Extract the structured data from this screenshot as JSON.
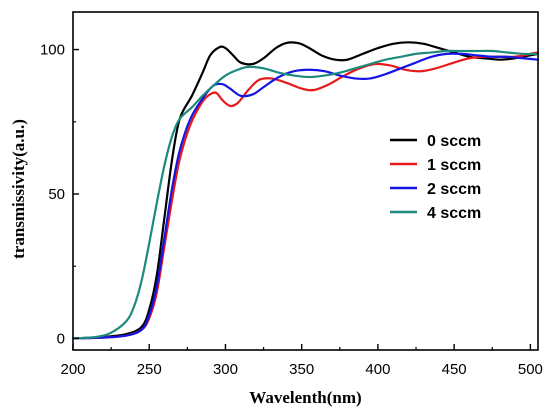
{
  "chart_data": {
    "type": "line",
    "title": "",
    "xlabel": "Wavelenth(nm)",
    "ylabel": "transmissivity(a.u.)",
    "xlim": [
      200,
      505
    ],
    "ylim": [
      -4,
      113
    ],
    "x_ticks": [
      200,
      250,
      300,
      350,
      400,
      450,
      500
    ],
    "y_ticks": [
      0,
      50,
      100
    ],
    "x_tick_labels": [
      "200",
      "250",
      "300",
      "350",
      "400",
      "450",
      "500"
    ],
    "y_tick_labels": [
      "0",
      "50",
      "100"
    ],
    "grid": false,
    "legend_position": "right",
    "series": [
      {
        "name": "0 sccm",
        "color": "#000000",
        "points": [
          [
            200,
            0
          ],
          [
            220,
            0.5
          ],
          [
            235,
            1.5
          ],
          [
            245,
            4
          ],
          [
            250,
            10
          ],
          [
            255,
            22
          ],
          [
            260,
            42
          ],
          [
            265,
            62
          ],
          [
            270,
            76
          ],
          [
            278,
            84
          ],
          [
            285,
            92
          ],
          [
            290,
            98
          ],
          [
            296,
            100.8
          ],
          [
            300,
            100.5
          ],
          [
            305,
            98
          ],
          [
            310,
            95.5
          ],
          [
            318,
            95
          ],
          [
            325,
            97
          ],
          [
            333,
            100.5
          ],
          [
            340,
            102.3
          ],
          [
            348,
            102.2
          ],
          [
            355,
            100.5
          ],
          [
            363,
            98
          ],
          [
            372,
            96.5
          ],
          [
            380,
            96.5
          ],
          [
            390,
            98.5
          ],
          [
            400,
            100.5
          ],
          [
            410,
            102
          ],
          [
            420,
            102.5
          ],
          [
            430,
            102
          ],
          [
            440,
            100.5
          ],
          [
            450,
            99
          ],
          [
            460,
            97.5
          ],
          [
            470,
            97
          ],
          [
            480,
            96.5
          ],
          [
            490,
            97
          ],
          [
            500,
            98
          ],
          [
            505,
            98.5
          ]
        ]
      },
      {
        "name": "1 sccm",
        "color": "#e8191a",
        "points": [
          [
            200,
            0
          ],
          [
            220,
            0.3
          ],
          [
            235,
            1
          ],
          [
            245,
            3
          ],
          [
            250,
            7
          ],
          [
            255,
            16
          ],
          [
            260,
            32
          ],
          [
            265,
            48
          ],
          [
            270,
            62
          ],
          [
            277,
            74
          ],
          [
            285,
            82
          ],
          [
            290,
            84.5
          ],
          [
            294,
            85
          ],
          [
            298,
            82.5
          ],
          [
            303,
            80.5
          ],
          [
            308,
            81.5
          ],
          [
            315,
            86
          ],
          [
            322,
            89.5
          ],
          [
            330,
            90
          ],
          [
            340,
            88.5
          ],
          [
            350,
            86.5
          ],
          [
            358,
            86
          ],
          [
            368,
            88
          ],
          [
            378,
            91
          ],
          [
            388,
            93.5
          ],
          [
            398,
            95
          ],
          [
            408,
            94.5
          ],
          [
            418,
            93
          ],
          [
            428,
            92.5
          ],
          [
            438,
            93.5
          ],
          [
            450,
            95.5
          ],
          [
            460,
            97
          ],
          [
            470,
            97.5
          ],
          [
            480,
            97.5
          ],
          [
            490,
            97.5
          ],
          [
            500,
            98.5
          ],
          [
            505,
            99
          ]
        ]
      },
      {
        "name": "2 sccm",
        "color": "#1414e6",
        "points": [
          [
            200,
            0
          ],
          [
            220,
            0.3
          ],
          [
            235,
            1
          ],
          [
            245,
            3
          ],
          [
            250,
            8
          ],
          [
            255,
            18
          ],
          [
            260,
            35
          ],
          [
            265,
            52
          ],
          [
            270,
            65
          ],
          [
            277,
            76
          ],
          [
            285,
            83
          ],
          [
            292,
            87.5
          ],
          [
            298,
            88
          ],
          [
            303,
            86.5
          ],
          [
            310,
            84
          ],
          [
            318,
            84.5
          ],
          [
            325,
            87
          ],
          [
            335,
            90.5
          ],
          [
            345,
            92.5
          ],
          [
            355,
            93
          ],
          [
            365,
            92.5
          ],
          [
            375,
            91
          ],
          [
            385,
            90
          ],
          [
            395,
            90
          ],
          [
            405,
            91.5
          ],
          [
            415,
            93.5
          ],
          [
            425,
            95.5
          ],
          [
            435,
            97.5
          ],
          [
            445,
            98.5
          ],
          [
            455,
            98.5
          ],
          [
            465,
            98
          ],
          [
            475,
            97.5
          ],
          [
            485,
            97.5
          ],
          [
            495,
            97
          ],
          [
            505,
            96.5
          ]
        ]
      },
      {
        "name": "4 sccm",
        "color": "#1d8a7c",
        "points": [
          [
            200,
            0
          ],
          [
            215,
            0.5
          ],
          [
            225,
            2
          ],
          [
            235,
            6
          ],
          [
            240,
            11
          ],
          [
            245,
            20
          ],
          [
            250,
            33
          ],
          [
            255,
            47
          ],
          [
            260,
            60
          ],
          [
            265,
            70
          ],
          [
            270,
            76
          ],
          [
            278,
            80
          ],
          [
            285,
            84
          ],
          [
            292,
            87.5
          ],
          [
            300,
            91
          ],
          [
            308,
            93
          ],
          [
            315,
            94
          ],
          [
            325,
            93.5
          ],
          [
            335,
            92
          ],
          [
            345,
            91
          ],
          [
            355,
            90.5
          ],
          [
            365,
            91
          ],
          [
            375,
            92
          ],
          [
            385,
            93.5
          ],
          [
            395,
            95
          ],
          [
            405,
            96.5
          ],
          [
            415,
            97.5
          ],
          [
            425,
            98.5
          ],
          [
            435,
            99
          ],
          [
            445,
            99.5
          ],
          [
            455,
            99.5
          ],
          [
            465,
            99.5
          ],
          [
            475,
            99.5
          ],
          [
            485,
            99
          ],
          [
            495,
            98.5
          ],
          [
            505,
            98.5
          ]
        ]
      }
    ]
  }
}
